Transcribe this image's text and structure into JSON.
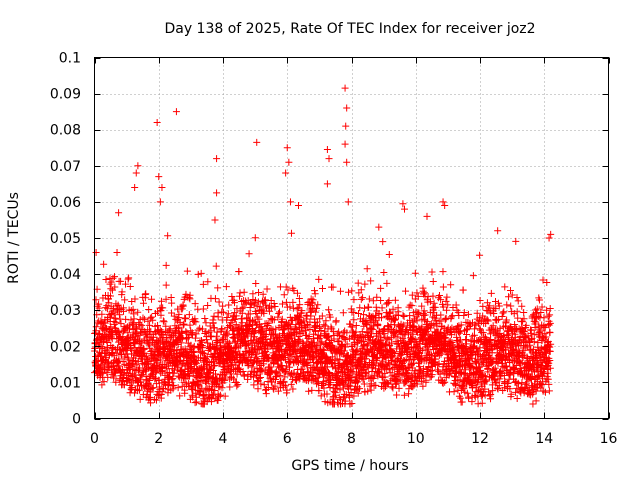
{
  "chart_data": {
    "type": "scatter",
    "title": "Day 138 of 2025, Rate Of TEC Index for receiver joz2",
    "xlabel": "GPS time / hours",
    "ylabel": "ROTI / TECUs",
    "xlim": [
      0,
      16
    ],
    "ylim": [
      0,
      0.1
    ],
    "xticks": [
      0,
      2,
      4,
      6,
      8,
      10,
      12,
      14,
      16
    ],
    "yticks": [
      0,
      0.01,
      0.02,
      0.03,
      0.04,
      0.05,
      0.06,
      0.07,
      0.08,
      0.09,
      0.1
    ],
    "xtick_labels": [
      "0",
      "2",
      "4",
      "6",
      "8",
      "10",
      "12",
      "14",
      "16"
    ],
    "ytick_labels": [
      "0",
      "0.01",
      "0.02",
      "0.03",
      "0.04",
      "0.05",
      "0.06",
      "0.07",
      "0.08",
      "0.09",
      "0.1"
    ],
    "grid": true,
    "marker": "+",
    "marker_color": "#ff0000",
    "series": [
      {
        "name": "ROTI",
        "x_range": [
          0,
          14.2
        ],
        "typical_band": [
          0.005,
          0.035
        ],
        "notable_points": [
          {
            "x": 2.55,
            "y": 0.085
          },
          {
            "x": 1.95,
            "y": 0.082
          },
          {
            "x": 7.8,
            "y": 0.0915
          },
          {
            "x": 7.85,
            "y": 0.086
          },
          {
            "x": 7.82,
            "y": 0.081
          },
          {
            "x": 7.8,
            "y": 0.076
          },
          {
            "x": 7.85,
            "y": 0.071
          },
          {
            "x": 7.25,
            "y": 0.0745
          },
          {
            "x": 7.3,
            "y": 0.072
          },
          {
            "x": 7.25,
            "y": 0.065
          },
          {
            "x": 5.05,
            "y": 0.0765
          },
          {
            "x": 6.0,
            "y": 0.075
          },
          {
            "x": 6.05,
            "y": 0.071
          },
          {
            "x": 5.95,
            "y": 0.068
          },
          {
            "x": 3.8,
            "y": 0.072
          },
          {
            "x": 3.8,
            "y": 0.0625
          },
          {
            "x": 1.35,
            "y": 0.07
          },
          {
            "x": 1.3,
            "y": 0.068
          },
          {
            "x": 1.25,
            "y": 0.064
          },
          {
            "x": 2.0,
            "y": 0.067
          },
          {
            "x": 2.1,
            "y": 0.064
          },
          {
            "x": 2.05,
            "y": 0.06
          },
          {
            "x": 6.1,
            "y": 0.06
          },
          {
            "x": 6.35,
            "y": 0.059
          },
          {
            "x": 7.9,
            "y": 0.06
          },
          {
            "x": 9.6,
            "y": 0.0595
          },
          {
            "x": 9.65,
            "y": 0.058
          },
          {
            "x": 10.85,
            "y": 0.06
          },
          {
            "x": 10.9,
            "y": 0.059
          },
          {
            "x": 10.35,
            "y": 0.056
          },
          {
            "x": 0.75,
            "y": 0.057
          },
          {
            "x": 3.75,
            "y": 0.055
          },
          {
            "x": 14.15,
            "y": 0.05
          },
          {
            "x": 14.2,
            "y": 0.051
          },
          {
            "x": 12.55,
            "y": 0.052
          },
          {
            "x": 8.85,
            "y": 0.053
          },
          {
            "x": 0.05,
            "y": 0.046
          },
          {
            "x": 11.55,
            "y": 0.0135
          },
          {
            "x": 11.95,
            "y": 0.0115
          },
          {
            "x": 13.4,
            "y": 0.0085
          }
        ]
      }
    ]
  }
}
